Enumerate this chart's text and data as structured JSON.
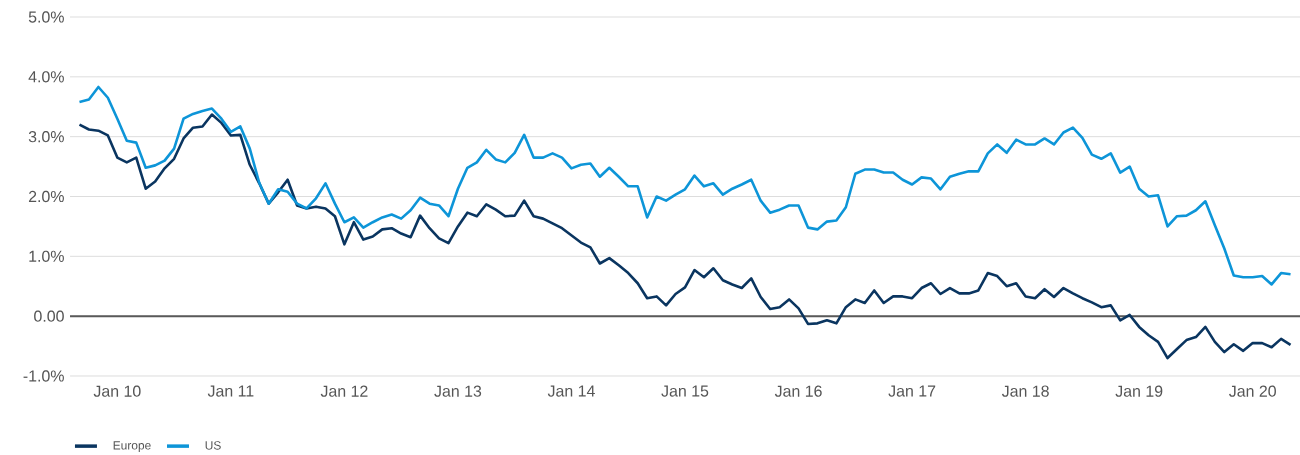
{
  "chart_data": {
    "type": "line",
    "x": [
      "2009-09",
      "2009-10",
      "2009-11",
      "2009-12",
      "2010-01",
      "2010-02",
      "2010-03",
      "2010-04",
      "2010-05",
      "2010-06",
      "2010-07",
      "2010-08",
      "2010-09",
      "2010-10",
      "2010-11",
      "2010-12",
      "2011-01",
      "2011-02",
      "2011-03",
      "2011-04",
      "2011-05",
      "2011-06",
      "2011-07",
      "2011-08",
      "2011-09",
      "2011-10",
      "2011-11",
      "2011-12",
      "2012-01",
      "2012-02",
      "2012-03",
      "2012-04",
      "2012-05",
      "2012-06",
      "2012-07",
      "2012-08",
      "2012-09",
      "2012-10",
      "2012-11",
      "2012-12",
      "2013-01",
      "2013-02",
      "2013-03",
      "2013-04",
      "2013-05",
      "2013-06",
      "2013-07",
      "2013-08",
      "2013-09",
      "2013-10",
      "2013-11",
      "2013-12",
      "2014-01",
      "2014-02",
      "2014-03",
      "2014-04",
      "2014-05",
      "2014-06",
      "2014-07",
      "2014-08",
      "2014-09",
      "2014-10",
      "2014-11",
      "2014-12",
      "2015-01",
      "2015-02",
      "2015-03",
      "2015-04",
      "2015-05",
      "2015-06",
      "2015-07",
      "2015-08",
      "2015-09",
      "2015-10",
      "2015-11",
      "2015-12",
      "2016-01",
      "2016-02",
      "2016-03",
      "2016-04",
      "2016-05",
      "2016-06",
      "2016-07",
      "2016-08",
      "2016-09",
      "2016-10",
      "2016-11",
      "2016-12",
      "2017-01",
      "2017-02",
      "2017-03",
      "2017-04",
      "2017-05",
      "2017-06",
      "2017-07",
      "2017-08",
      "2017-09",
      "2017-10",
      "2017-11",
      "2017-12",
      "2018-01",
      "2018-02",
      "2018-03",
      "2018-04",
      "2018-05",
      "2018-06",
      "2018-07",
      "2018-08",
      "2018-09",
      "2018-10",
      "2018-11",
      "2018-12",
      "2019-01",
      "2019-02",
      "2019-03",
      "2019-04",
      "2019-05",
      "2019-06",
      "2019-07",
      "2019-08",
      "2019-09",
      "2019-10",
      "2019-11",
      "2019-12",
      "2020-01",
      "2020-02",
      "2020-03",
      "2020-04",
      "2020-05"
    ],
    "series": [
      {
        "name": "Europe",
        "color": "#0a3560",
        "values": [
          3.2,
          3.12,
          3.1,
          3.02,
          2.65,
          2.57,
          2.65,
          2.13,
          2.25,
          2.47,
          2.63,
          2.97,
          3.15,
          3.17,
          3.37,
          3.23,
          3.02,
          3.03,
          2.53,
          2.22,
          1.88,
          2.07,
          2.28,
          1.85,
          1.8,
          1.83,
          1.8,
          1.67,
          1.2,
          1.57,
          1.28,
          1.33,
          1.45,
          1.47,
          1.38,
          1.32,
          1.68,
          1.47,
          1.3,
          1.22,
          1.5,
          1.73,
          1.67,
          1.87,
          1.78,
          1.67,
          1.68,
          1.93,
          1.67,
          1.63,
          1.55,
          1.47,
          1.35,
          1.23,
          1.15,
          0.88,
          0.97,
          0.85,
          0.72,
          0.55,
          0.3,
          0.33,
          0.18,
          0.37,
          0.48,
          0.77,
          0.65,
          0.8,
          0.6,
          0.53,
          0.47,
          0.63,
          0.32,
          0.12,
          0.15,
          0.28,
          0.13,
          -0.13,
          -0.12,
          -0.07,
          -0.12,
          0.15,
          0.28,
          0.22,
          0.43,
          0.22,
          0.33,
          0.33,
          0.3,
          0.47,
          0.55,
          0.37,
          0.47,
          0.38,
          0.38,
          0.43,
          0.72,
          0.67,
          0.5,
          0.55,
          0.33,
          0.3,
          0.45,
          0.32,
          0.47,
          0.38,
          0.3,
          0.23,
          0.15,
          0.18,
          -0.07,
          0.02,
          -0.18,
          -0.32,
          -0.43,
          -0.7,
          -0.55,
          -0.4,
          -0.35,
          -0.18,
          -0.43,
          -0.6,
          -0.47,
          -0.58,
          -0.45,
          -0.45,
          -0.52,
          -0.38,
          -0.48
        ]
      },
      {
        "name": "US",
        "color": "#0d95d8",
        "values": [
          3.58,
          3.62,
          3.83,
          3.65,
          3.3,
          2.93,
          2.9,
          2.48,
          2.52,
          2.6,
          2.8,
          3.3,
          3.38,
          3.43,
          3.47,
          3.3,
          3.08,
          3.17,
          2.8,
          2.23,
          1.88,
          2.12,
          2.08,
          1.88,
          1.8,
          1.97,
          2.22,
          1.88,
          1.57,
          1.65,
          1.48,
          1.57,
          1.65,
          1.7,
          1.63,
          1.77,
          1.98,
          1.88,
          1.85,
          1.67,
          2.13,
          2.48,
          2.57,
          2.78,
          2.62,
          2.57,
          2.73,
          3.03,
          2.65,
          2.65,
          2.72,
          2.65,
          2.47,
          2.53,
          2.55,
          2.33,
          2.48,
          2.33,
          2.17,
          2.17,
          1.65,
          2.0,
          1.93,
          2.03,
          2.12,
          2.35,
          2.17,
          2.22,
          2.03,
          2.13,
          2.2,
          2.28,
          1.93,
          1.73,
          1.78,
          1.85,
          1.85,
          1.48,
          1.45,
          1.58,
          1.6,
          1.82,
          2.38,
          2.45,
          2.45,
          2.4,
          2.4,
          2.28,
          2.2,
          2.32,
          2.3,
          2.12,
          2.33,
          2.38,
          2.42,
          2.42,
          2.72,
          2.87,
          2.73,
          2.95,
          2.87,
          2.87,
          2.97,
          2.87,
          3.07,
          3.15,
          2.98,
          2.7,
          2.63,
          2.72,
          2.4,
          2.5,
          2.13,
          2.0,
          2.02,
          1.5,
          1.67,
          1.68,
          1.77,
          1.92,
          1.52,
          1.13,
          0.68,
          0.65,
          0.65,
          0.67,
          0.53,
          0.72,
          0.7
        ]
      }
    ],
    "xlim": [
      "2009-08",
      "2020-06"
    ],
    "xticks": [
      {
        "value": "2010-01",
        "label": "Jan 10"
      },
      {
        "value": "2011-01",
        "label": "Jan 11"
      },
      {
        "value": "2012-01",
        "label": "Jan 12"
      },
      {
        "value": "2013-01",
        "label": "Jan 13"
      },
      {
        "value": "2014-01",
        "label": "Jan 14"
      },
      {
        "value": "2015-01",
        "label": "Jan 15"
      },
      {
        "value": "2016-01",
        "label": "Jan 16"
      },
      {
        "value": "2017-01",
        "label": "Jan 17"
      },
      {
        "value": "2018-01",
        "label": "Jan 18"
      },
      {
        "value": "2019-01",
        "label": "Jan 19"
      },
      {
        "value": "2020-01",
        "label": "Jan 20"
      }
    ],
    "ylim": [
      -1,
      5
    ],
    "yticks": [
      {
        "value": -1,
        "label": "-1.0%"
      },
      {
        "value": 0,
        "label": "0.00"
      },
      {
        "value": 1,
        "label": "1.0%"
      },
      {
        "value": 2,
        "label": "2.0%"
      },
      {
        "value": 3,
        "label": "3.0%"
      },
      {
        "value": 4,
        "label": "4.0%"
      },
      {
        "value": 5,
        "label": "5.0%"
      }
    ],
    "ref_lines": [
      {
        "axis": "y",
        "value": 0,
        "color": "#595959"
      }
    ],
    "grid": "y",
    "legend": "bottom left",
    "marker": "none",
    "line_style": "solid"
  }
}
